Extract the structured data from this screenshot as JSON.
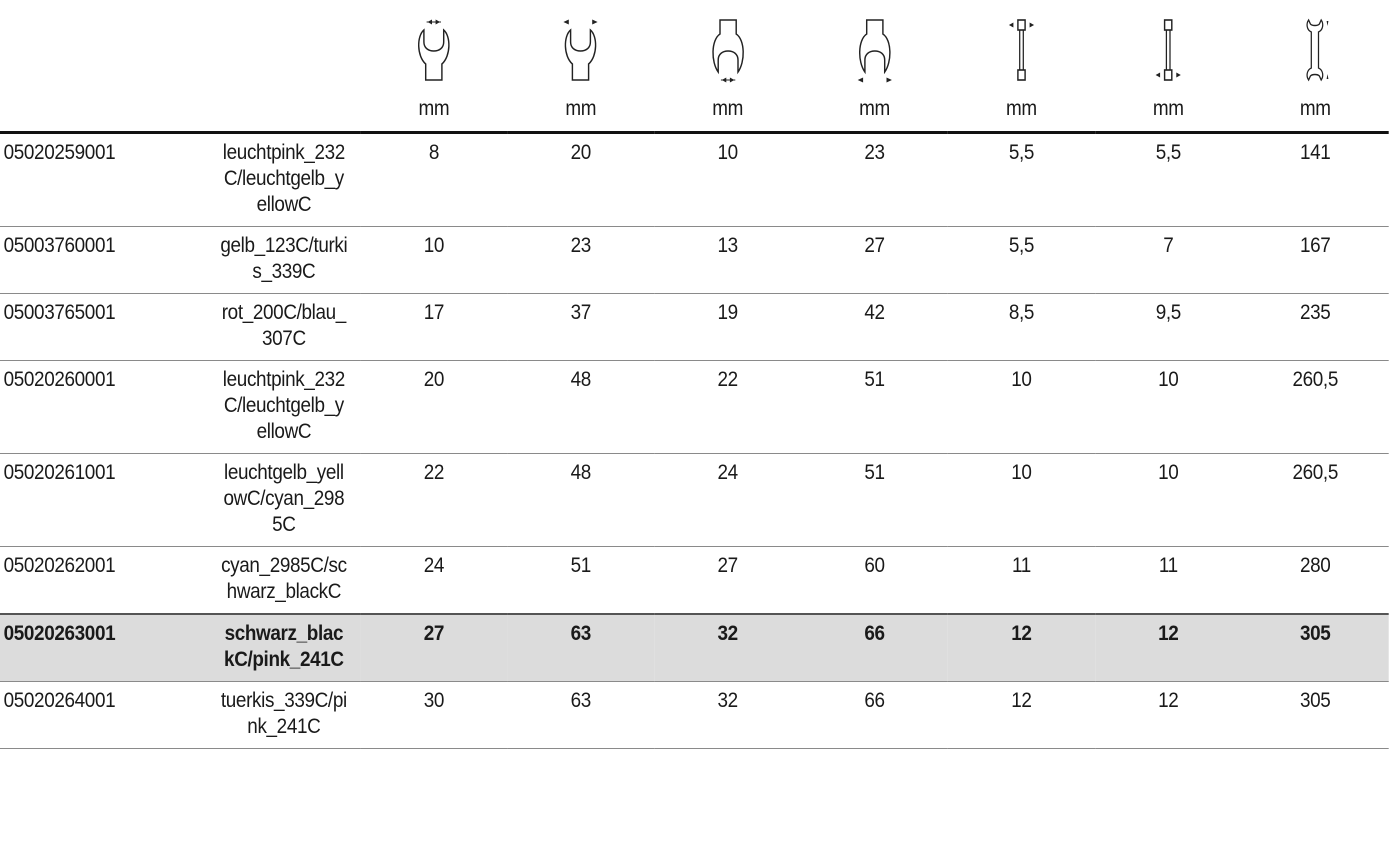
{
  "table": {
    "unit_labels": [
      "mm",
      "mm",
      "mm",
      "mm",
      "mm",
      "mm",
      "mm"
    ],
    "header_icons": [
      "wrench-head-jaw-width-icon",
      "wrench-head-outer-width-icon",
      "wrench-head-jaw-width-far-end-icon",
      "wrench-head-outer-width-far-end-icon",
      "wrench-head-thickness-icon",
      "wrench-far-end-thickness-icon",
      "wrench-total-length-icon"
    ],
    "highlight_color": "#dcdcdc",
    "rows": [
      {
        "article": "05020259001",
        "colour": "leuchtpink_232C/leuchtgelb_yellowC",
        "values": [
          "8",
          "20",
          "10",
          "23",
          "5,5",
          "5,5",
          "141"
        ],
        "highlight": false
      },
      {
        "article": "05003760001",
        "colour": "gelb_123C/turkis_339C",
        "values": [
          "10",
          "23",
          "13",
          "27",
          "5,5",
          "7",
          "167"
        ],
        "highlight": false
      },
      {
        "article": "05003765001",
        "colour": "rot_200C/blau_307C",
        "values": [
          "17",
          "37",
          "19",
          "42",
          "8,5",
          "9,5",
          "235"
        ],
        "highlight": false
      },
      {
        "article": "05020260001",
        "colour": "leuchtpink_232C/leuchtgelb_yellowC",
        "values": [
          "20",
          "48",
          "22",
          "51",
          "10",
          "10",
          "260,5"
        ],
        "highlight": false
      },
      {
        "article": "05020261001",
        "colour": "leuchtgelb_yellowC/cyan_2985C",
        "values": [
          "22",
          "48",
          "24",
          "51",
          "10",
          "10",
          "260,5"
        ],
        "highlight": false
      },
      {
        "article": "05020262001",
        "colour": "cyan_2985C/schwarz_blackC",
        "values": [
          "24",
          "51",
          "27",
          "60",
          "11",
          "11",
          "280"
        ],
        "highlight": false
      },
      {
        "article": "05020263001",
        "colour": "schwarz_blackC/pink_241C",
        "values": [
          "27",
          "63",
          "32",
          "66",
          "12",
          "12",
          "305"
        ],
        "highlight": true
      },
      {
        "article": "05020264001",
        "colour": "tuerkis_339C/pink_241C",
        "values": [
          "30",
          "63",
          "32",
          "66",
          "12",
          "12",
          "305"
        ],
        "highlight": false
      }
    ]
  }
}
